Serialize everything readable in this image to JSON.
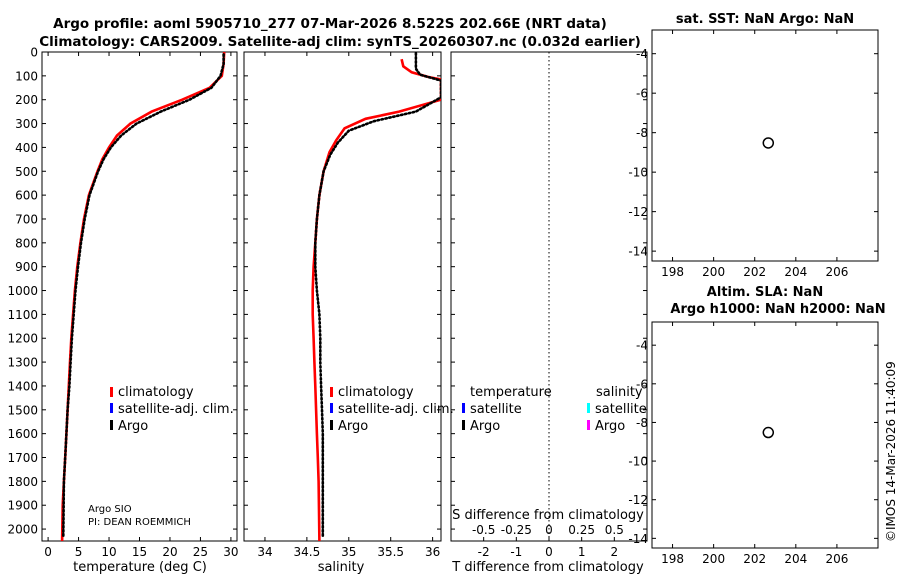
{
  "header": {
    "line1": "Argo profile: aoml 5905710_277 07-Mar-2026 8.522S 202.66E (NRT data)",
    "line2": "Climatology: CARS2009. Satellite-adj clim: synTS_20260307.nc (0.032d earlier)"
  },
  "colors": {
    "climatology": "#ff0000",
    "satellite_adj": "#0000ff",
    "argo": "#000000",
    "satellite_salinity": "#00ffff",
    "argo_salinity": "#ff00ff"
  },
  "depth_axis": {
    "ticks": [
      "0",
      "100",
      "200",
      "300",
      "400",
      "500",
      "600",
      "700",
      "800",
      "900",
      "1000",
      "1100",
      "1200",
      "1300",
      "1400",
      "1500",
      "1600",
      "1700",
      "1800",
      "1900",
      "2000"
    ],
    "range": [
      0,
      2050
    ]
  },
  "temperature_panel": {
    "xlabel": "temperature (deg C)",
    "xticks": [
      "0",
      "5",
      "10",
      "15",
      "20",
      "25",
      "30"
    ],
    "legend": [
      "climatology",
      "satellite-adj. clim.",
      "Argo"
    ],
    "credit1": "Argo SIO",
    "credit2": "PI: DEAN ROEMMICH"
  },
  "salinity_panel": {
    "xlabel": "salinity",
    "xticks": [
      "34",
      "34.5",
      "35",
      "35.5",
      "36"
    ],
    "legend": [
      "climatology",
      "satellite-adj. clim.",
      "Argo"
    ]
  },
  "difference_panel": {
    "xlabel": "T difference from climatology",
    "top_label": "S difference from climatology",
    "xticks": [
      "-2",
      "-1",
      "0",
      "1",
      "2"
    ],
    "top_ticks": [
      "-0.5",
      "-0.25",
      "0",
      "0.25",
      "0.5"
    ],
    "legend_left_title": "temperature",
    "legend_right_title": "salinity",
    "legend_left": [
      "satellite",
      "Argo"
    ],
    "legend_right": [
      "satellite",
      "Argo"
    ]
  },
  "sst_panel": {
    "title": "sat. SST: NaN Argo: NaN",
    "yticks": [
      "-4",
      "-6",
      "-8",
      "-10",
      "-12",
      "-14"
    ],
    "xticks": [
      "198",
      "200",
      "202",
      "204",
      "206"
    ]
  },
  "sla_panel": {
    "title1": "Altim. SLA: NaN",
    "title2": "Argo h1000: NaN h2000: NaN",
    "yticks": [
      "-4",
      "-6",
      "-8",
      "-10",
      "-12",
      "-14"
    ],
    "xticks": [
      "198",
      "200",
      "202",
      "204",
      "206"
    ]
  },
  "watermark": "©IMOS 14-Mar-2026 11:40:09",
  "chart_data": [
    {
      "type": "line",
      "xlabel": "temperature (deg C)",
      "ylabel": "",
      "xlim": [
        -1,
        31
      ],
      "ylim": [
        2050,
        0
      ],
      "series": [
        {
          "name": "climatology",
          "x": [
            28.9,
            28.8,
            28.5,
            26.5,
            22.0,
            17.0,
            13.5,
            11.3,
            10.0,
            8.9,
            8.1,
            7.4,
            6.7,
            5.9,
            5.3,
            4.8,
            4.4,
            4.1,
            3.8,
            3.6,
            3.4,
            3.2,
            3.0,
            2.8,
            2.6,
            2.4,
            2.3
          ],
          "y": [
            0,
            50,
            100,
            150,
            200,
            250,
            300,
            350,
            400,
            450,
            500,
            550,
            600,
            700,
            800,
            900,
            1000,
            1100,
            1200,
            1300,
            1400,
            1500,
            1600,
            1700,
            1800,
            1900,
            2050
          ]
        },
        {
          "name": "Argo",
          "x": [
            28.8,
            28.8,
            28.3,
            26.8,
            23.2,
            18.5,
            14.5,
            12.0,
            10.3,
            9.1,
            8.2,
            7.5,
            6.8,
            6.0,
            5.4,
            4.9,
            4.5,
            4.2,
            3.9,
            3.7,
            3.5,
            3.2,
            3.0,
            2.8,
            2.6,
            2.5
          ],
          "y": [
            10,
            50,
            100,
            150,
            200,
            250,
            300,
            350,
            400,
            450,
            500,
            550,
            600,
            700,
            800,
            900,
            1000,
            1100,
            1200,
            1300,
            1400,
            1500,
            1600,
            1700,
            1800,
            2030
          ]
        }
      ]
    },
    {
      "type": "line",
      "xlabel": "salinity",
      "ylabel": "",
      "xlim": [
        33.75,
        36.1
      ],
      "ylim": [
        2050,
        0
      ],
      "series": [
        {
          "name": "climatology",
          "x": [
            35.63,
            35.65,
            35.75,
            35.95,
            36.1,
            36.1,
            35.6,
            35.2,
            34.95,
            34.85,
            34.77,
            34.7,
            34.65,
            34.62,
            34.6,
            34.58,
            34.57,
            34.57,
            34.58,
            34.59,
            34.6,
            34.61,
            34.62,
            34.63,
            34.64,
            34.65
          ],
          "y": [
            30,
            60,
            85,
            105,
            115,
            200,
            250,
            280,
            320,
            370,
            420,
            500,
            600,
            700,
            800,
            900,
            1000,
            1100,
            1200,
            1300,
            1400,
            1500,
            1600,
            1700,
            1800,
            2050
          ]
        },
        {
          "name": "Argo",
          "x": [
            35.8,
            35.8,
            35.85,
            36.0,
            36.1,
            36.1,
            35.8,
            35.3,
            35.0,
            34.87,
            34.78,
            34.7,
            34.65,
            34.62,
            34.6,
            34.6,
            34.62,
            34.65,
            34.66,
            34.66,
            34.67,
            34.68,
            34.69,
            34.69,
            34.69,
            34.69
          ],
          "y": [
            5,
            70,
            95,
            110,
            120,
            190,
            250,
            290,
            330,
            380,
            430,
            500,
            600,
            700,
            800,
            900,
            1000,
            1100,
            1200,
            1300,
            1400,
            1500,
            1600,
            1700,
            1800,
            2030
          ]
        }
      ]
    },
    {
      "type": "scatter",
      "xlabel": "T difference from climatology",
      "xlim": [
        -3,
        3
      ],
      "top_xlabel": "S difference from climatology",
      "top_xlim": [
        -0.75,
        0.75
      ],
      "ylim": [
        2050,
        0
      ],
      "series": []
    },
    {
      "type": "scatter",
      "title": "sat. SST: NaN Argo: NaN",
      "xlim": [
        197,
        208
      ],
      "ylim": [
        -14.5,
        -2.8
      ],
      "series": [
        {
          "x": [
            202.66
          ],
          "y": [
            -8.522
          ]
        }
      ]
    },
    {
      "type": "scatter",
      "title": "Altim. SLA: NaN",
      "xlim": [
        197,
        208
      ],
      "ylim": [
        -14.5,
        -2.8
      ],
      "series": [
        {
          "x": [
            202.66
          ],
          "y": [
            -8.522
          ]
        }
      ]
    }
  ]
}
